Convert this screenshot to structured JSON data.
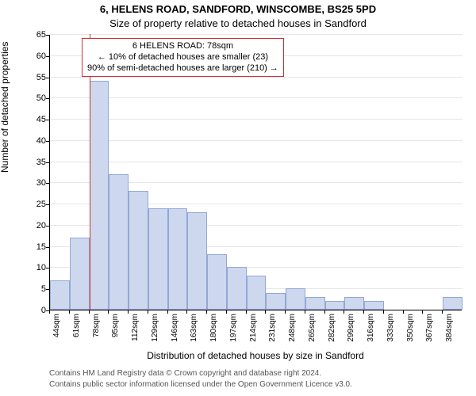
{
  "title_main": "6, HELENS ROAD, SANDFORD, WINSCOMBE, BS25 5PD",
  "title_sub": "Size of property relative to detached houses in Sandford",
  "ylabel": "Number of detached properties",
  "xlabel": "Distribution of detached houses by size in Sandford",
  "footer_line1": "Contains HM Land Registry data © Crown copyright and database right 2024.",
  "footer_line2": "Contains public sector information licensed under the Open Government Licence v3.0.",
  "chart": {
    "type": "bar",
    "ylim": [
      0,
      65
    ],
    "ytick_step": 5,
    "x_start": 44,
    "x_step": 17,
    "x_count": 21,
    "x_unit": "sqm",
    "values": [
      7,
      17,
      54,
      32,
      28,
      24,
      24,
      23,
      13,
      10,
      8,
      4,
      5,
      3,
      2,
      3,
      2,
      0,
      0,
      0,
      3
    ],
    "bar_fill": "#cdd8ef",
    "bar_border": "#94a7d4",
    "background_color": "#ffffff",
    "grid_color": "#e6e6e6",
    "axis_color": "#000000",
    "marker_value": 78,
    "marker_color": "#d03030",
    "title_fontsize": 13,
    "label_fontsize": 12,
    "tick_fontsize": 11
  },
  "callout": {
    "line1": "6 HELENS ROAD: 78sqm",
    "line2": "← 10% of detached houses are smaller (23)",
    "line3": "90% of semi-detached houses are larger (210) →"
  }
}
